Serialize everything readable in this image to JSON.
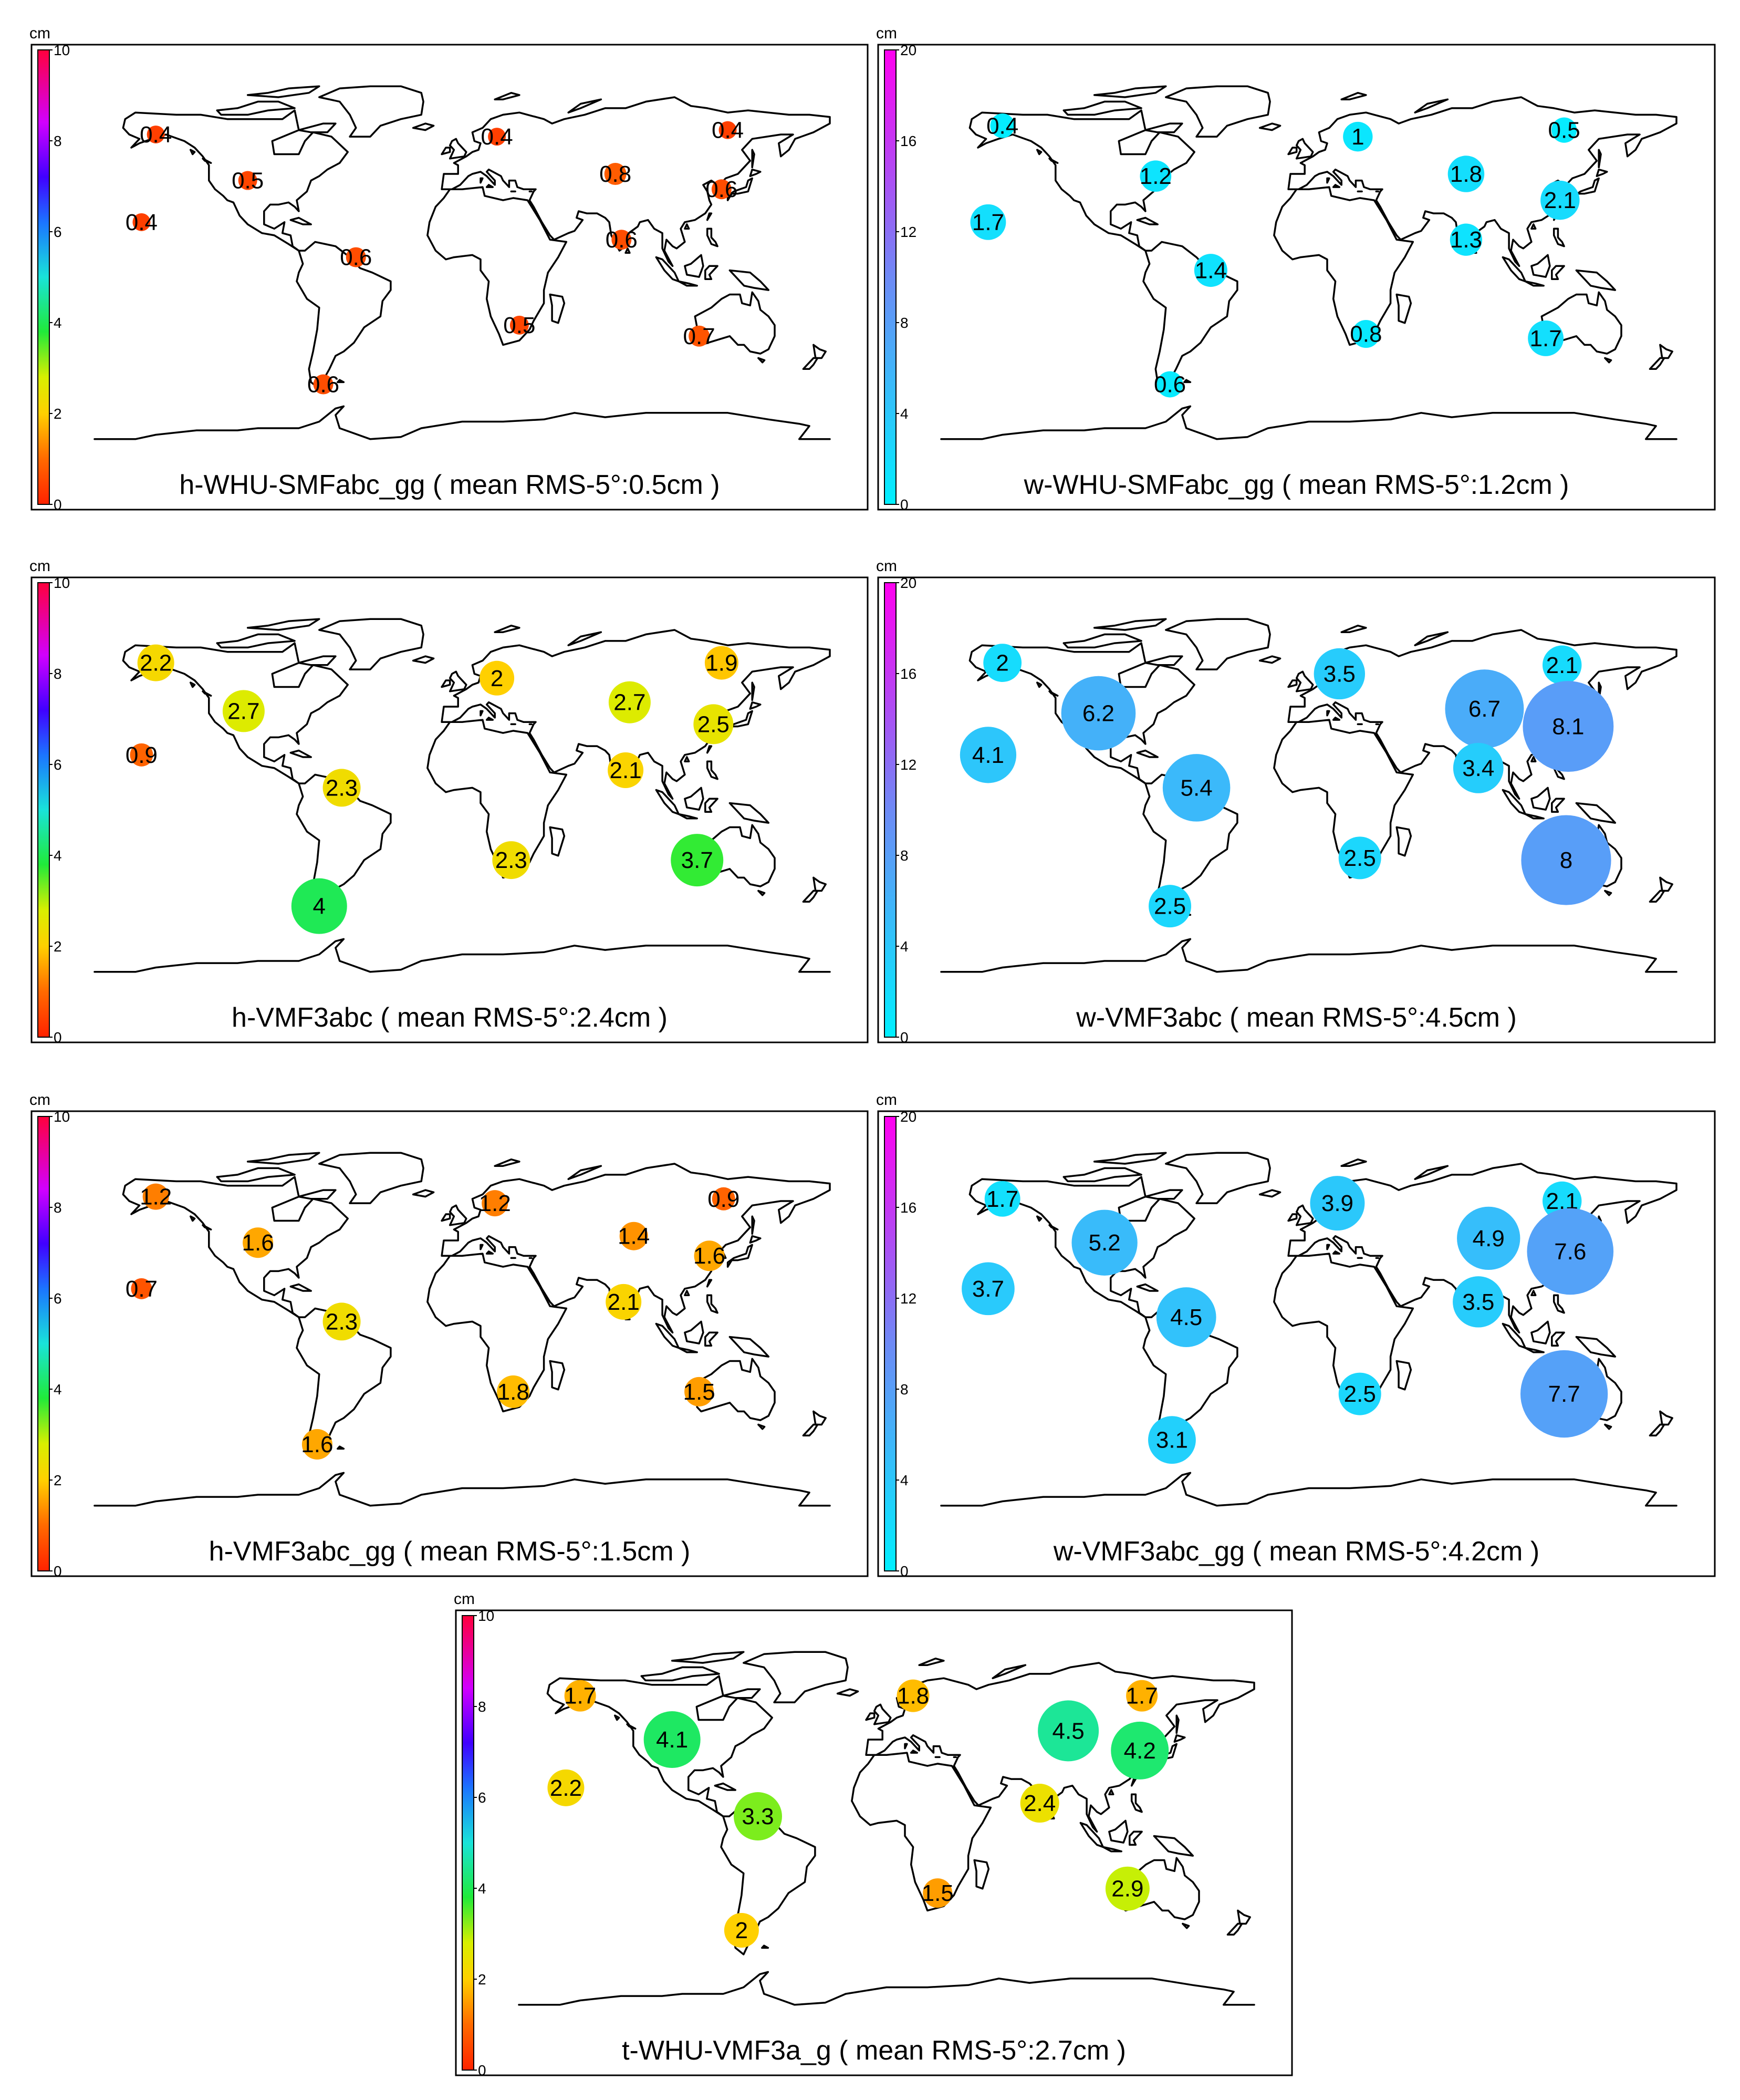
{
  "figure": {
    "unit_label": "cm",
    "panels": [
      {
        "id": "h-whu-smfabc-gg",
        "title": "h-WHU-SMFabc_gg  ( mean RMS-5°:0.5cm )",
        "scale_max": 10,
        "scale_type": "h",
        "ticks": [
          "0",
          "2",
          "4",
          "6",
          "8",
          "10"
        ],
        "stations": [
          {
            "lon": -150,
            "lat": 61,
            "value": "0.4"
          },
          {
            "lon": -157,
            "lat": 21,
            "value": "0.4"
          },
          {
            "lon": -105,
            "lat": 40,
            "value": "0.5"
          },
          {
            "lon": -52,
            "lat": 5,
            "value": "0.6"
          },
          {
            "lon": -68,
            "lat": -53,
            "value": "0.6"
          },
          {
            "lon": 17,
            "lat": 60,
            "value": "0.4"
          },
          {
            "lon": 75,
            "lat": 43,
            "value": "0.8"
          },
          {
            "lon": 130,
            "lat": 63,
            "value": "0.4"
          },
          {
            "lon": 127,
            "lat": 36,
            "value": "0.6"
          },
          {
            "lon": 78,
            "lat": 13,
            "value": "0.6"
          },
          {
            "lon": 28,
            "lat": -26,
            "value": "0.5"
          },
          {
            "lon": 116,
            "lat": -31,
            "value": "0.7"
          }
        ]
      },
      {
        "id": "w-whu-smfabc-gg",
        "title": "w-WHU-SMFabc_gg  ( mean RMS-5°:1.2cm )",
        "scale_max": 20,
        "scale_type": "w",
        "ticks": [
          "0",
          "4",
          "8",
          "12",
          "16",
          "20"
        ],
        "stations": [
          {
            "lon": -150,
            "lat": 65,
            "value": "0.4"
          },
          {
            "lon": -157,
            "lat": 21,
            "value": "1.7"
          },
          {
            "lon": -75,
            "lat": 42,
            "value": "1.2"
          },
          {
            "lon": -48,
            "lat": -1,
            "value": "1.4"
          },
          {
            "lon": -68,
            "lat": -53,
            "value": "0.6"
          },
          {
            "lon": 24,
            "lat": 60,
            "value": "1"
          },
          {
            "lon": 77,
            "lat": 43,
            "value": "1.8"
          },
          {
            "lon": 125,
            "lat": 63,
            "value": "0.5"
          },
          {
            "lon": 123,
            "lat": 31,
            "value": "2.1"
          },
          {
            "lon": 77,
            "lat": 13,
            "value": "1.3"
          },
          {
            "lon": 28,
            "lat": -30,
            "value": "0.8"
          },
          {
            "lon": 116,
            "lat": -32,
            "value": "1.7"
          }
        ]
      },
      {
        "id": "h-vmf3abc",
        "title": "h-VMF3abc  ( mean RMS-5°:2.4cm )",
        "scale_max": 10,
        "scale_type": "h",
        "ticks": [
          "0",
          "2",
          "4",
          "6",
          "8",
          "10"
        ],
        "stations": [
          {
            "lon": -150,
            "lat": 63,
            "value": "2.2"
          },
          {
            "lon": -157,
            "lat": 21,
            "value": "0.9"
          },
          {
            "lon": -107,
            "lat": 41,
            "value": "2.7"
          },
          {
            "lon": -59,
            "lat": 6,
            "value": "2.3"
          },
          {
            "lon": -70,
            "lat": -48,
            "value": "4"
          },
          {
            "lon": 17,
            "lat": 56,
            "value": "2"
          },
          {
            "lon": 82,
            "lat": 45,
            "value": "2.7"
          },
          {
            "lon": 127,
            "lat": 63,
            "value": "1.9"
          },
          {
            "lon": 123,
            "lat": 35,
            "value": "2.5"
          },
          {
            "lon": 80,
            "lat": 14,
            "value": "2.1"
          },
          {
            "lon": 24,
            "lat": -27,
            "value": "2.3"
          },
          {
            "lon": 115,
            "lat": -27,
            "value": "3.7"
          }
        ]
      },
      {
        "id": "w-vmf3abc",
        "title": "w-VMF3abc  ( mean RMS-5°:4.5cm )",
        "scale_max": 20,
        "scale_type": "w",
        "ticks": [
          "0",
          "4",
          "8",
          "12",
          "16",
          "20"
        ],
        "stations": [
          {
            "lon": -150,
            "lat": 63,
            "value": "2"
          },
          {
            "lon": -157,
            "lat": 21,
            "value": "4.1"
          },
          {
            "lon": -103,
            "lat": 40,
            "value": "6.2"
          },
          {
            "lon": -55,
            "lat": 6,
            "value": "5.4"
          },
          {
            "lon": -68,
            "lat": -48,
            "value": "2.5"
          },
          {
            "lon": 15,
            "lat": 58,
            "value": "3.5"
          },
          {
            "lon": 86,
            "lat": 42,
            "value": "6.7"
          },
          {
            "lon": 124,
            "lat": 62,
            "value": "2.1"
          },
          {
            "lon": 127,
            "lat": 34,
            "value": "8.1"
          },
          {
            "lon": 83,
            "lat": 15,
            "value": "3.4"
          },
          {
            "lon": 25,
            "lat": -26,
            "value": "2.5"
          },
          {
            "lon": 126,
            "lat": -27,
            "value": "8"
          }
        ]
      },
      {
        "id": "h-vmf3abc-gg",
        "title": "h-VMF3abc_gg  ( mean RMS-5°:1.5cm )",
        "scale_max": 10,
        "scale_type": "h",
        "ticks": [
          "0",
          "2",
          "4",
          "6",
          "8",
          "10"
        ],
        "stations": [
          {
            "lon": -150,
            "lat": 63,
            "value": "1.2"
          },
          {
            "lon": -157,
            "lat": 21,
            "value": "0.7"
          },
          {
            "lon": -100,
            "lat": 42,
            "value": "1.6"
          },
          {
            "lon": -59,
            "lat": 6,
            "value": "2.3"
          },
          {
            "lon": -71,
            "lat": -50,
            "value": "1.6"
          },
          {
            "lon": 16,
            "lat": 60,
            "value": "1.2"
          },
          {
            "lon": 84,
            "lat": 45,
            "value": "1.4"
          },
          {
            "lon": 128,
            "lat": 62,
            "value": "0.9"
          },
          {
            "lon": 121,
            "lat": 36,
            "value": "1.6"
          },
          {
            "lon": 79,
            "lat": 15,
            "value": "2.1"
          },
          {
            "lon": 25,
            "lat": -26,
            "value": "1.8"
          },
          {
            "lon": 116,
            "lat": -26,
            "value": "1.5"
          }
        ]
      },
      {
        "id": "w-vmf3abc-gg",
        "title": "w-VMF3abc_gg  ( mean RMS-5°:4.2cm )",
        "scale_max": 20,
        "scale_type": "w",
        "ticks": [
          "0",
          "4",
          "8",
          "12",
          "16",
          "20"
        ],
        "stations": [
          {
            "lon": -150,
            "lat": 62,
            "value": "1.7"
          },
          {
            "lon": -157,
            "lat": 21,
            "value": "3.7"
          },
          {
            "lon": -100,
            "lat": 42,
            "value": "5.2"
          },
          {
            "lon": -60,
            "lat": 8,
            "value": "4.5"
          },
          {
            "lon": -67,
            "lat": -48,
            "value": "3.1"
          },
          {
            "lon": 14,
            "lat": 60,
            "value": "3.9"
          },
          {
            "lon": 88,
            "lat": 44,
            "value": "4.9"
          },
          {
            "lon": 124,
            "lat": 61,
            "value": "2.1"
          },
          {
            "lon": 128,
            "lat": 38,
            "value": "7.6"
          },
          {
            "lon": 83,
            "lat": 15,
            "value": "3.5"
          },
          {
            "lon": 25,
            "lat": -27,
            "value": "2.5"
          },
          {
            "lon": 125,
            "lat": -27,
            "value": "7.7"
          }
        ]
      },
      {
        "id": "t-whu-vmf3a-g",
        "title": "t-WHU-VMF3a_g  ( mean RMS-5°:2.7cm )",
        "scale_max": 10,
        "scale_type": "h",
        "ticks": [
          "0",
          "2",
          "4",
          "6",
          "8",
          "10"
        ],
        "stations": [
          {
            "lon": -150,
            "lat": 63,
            "value": "1.7"
          },
          {
            "lon": -157,
            "lat": 21,
            "value": "2.2"
          },
          {
            "lon": -105,
            "lat": 43,
            "value": "4.1"
          },
          {
            "lon": -63,
            "lat": 8,
            "value": "3.3"
          },
          {
            "lon": -71,
            "lat": -44,
            "value": "2"
          },
          {
            "lon": 13,
            "lat": 63,
            "value": "1.8"
          },
          {
            "lon": 89,
            "lat": 47,
            "value": "4.5"
          },
          {
            "lon": 125,
            "lat": 63,
            "value": "1.7"
          },
          {
            "lon": 124,
            "lat": 38,
            "value": "4.2"
          },
          {
            "lon": 75,
            "lat": 14,
            "value": "2.4"
          },
          {
            "lon": 25,
            "lat": -27,
            "value": "1.5"
          },
          {
            "lon": 118,
            "lat": -25,
            "value": "2.9"
          }
        ]
      }
    ]
  }
}
